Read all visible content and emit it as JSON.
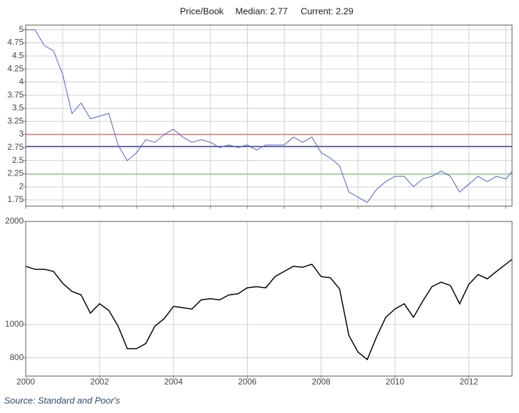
{
  "chart_data": [
    {
      "type": "line",
      "title": "Price/Book",
      "annotations": [
        "Median: 2.77",
        "Current: 2.29"
      ],
      "x": [
        2000,
        2000.25,
        2000.5,
        2000.75,
        2001,
        2001.25,
        2001.5,
        2001.75,
        2002,
        2002.25,
        2002.5,
        2002.75,
        2003,
        2003.25,
        2003.5,
        2003.75,
        2004,
        2004.25,
        2004.5,
        2004.75,
        2005,
        2005.25,
        2005.5,
        2005.75,
        2006,
        2006.25,
        2006.5,
        2006.75,
        2007,
        2007.25,
        2007.5,
        2007.75,
        2008,
        2008.25,
        2008.5,
        2008.75,
        2009,
        2009.25,
        2009.5,
        2009.75,
        2010,
        2010.25,
        2010.5,
        2010.75,
        2011,
        2011.25,
        2011.5,
        2011.75,
        2012,
        2012.25,
        2012.5,
        2012.75,
        2013,
        2013.17
      ],
      "values": [
        5.0,
        5.0,
        4.7,
        4.6,
        4.15,
        3.4,
        3.6,
        3.3,
        3.35,
        3.4,
        2.8,
        2.5,
        2.65,
        2.9,
        2.85,
        3.0,
        3.1,
        2.95,
        2.85,
        2.9,
        2.85,
        2.75,
        2.8,
        2.75,
        2.8,
        2.7,
        2.8,
        2.8,
        2.8,
        2.95,
        2.85,
        2.95,
        2.65,
        2.55,
        2.4,
        1.9,
        1.8,
        1.7,
        1.95,
        2.1,
        2.2,
        2.2,
        2.0,
        2.15,
        2.2,
        2.3,
        2.2,
        1.9,
        2.05,
        2.2,
        2.1,
        2.2,
        2.15,
        2.29
      ],
      "color": "#4a5fd6",
      "reference_lines": [
        {
          "value": 3,
          "color": "#e06060"
        },
        {
          "value": 2.77,
          "color": "#3c3c8c"
        },
        {
          "value": 2.24,
          "color": "#80d080"
        }
      ],
      "xlim": [
        2000,
        2013.17
      ],
      "xticks": [
        2000,
        2001,
        2002,
        2003,
        2004,
        2005,
        2006,
        2007,
        2008,
        2009,
        2010,
        2011,
        2012,
        2013
      ],
      "show_xtick_labels": false,
      "ylim": [
        1.63,
        5.09
      ],
      "yticks": [
        1.75,
        2,
        2.25,
        2.5,
        2.75,
        3,
        3.25,
        3.5,
        3.75,
        4,
        4.25,
        4.5,
        4.75,
        5
      ],
      "log_scale": false,
      "grid": true
    },
    {
      "type": "line",
      "x": [
        2000,
        2000.25,
        2000.5,
        2000.75,
        2001,
        2001.25,
        2001.5,
        2001.75,
        2002,
        2002.25,
        2002.5,
        2002.75,
        2003,
        2003.25,
        2003.5,
        2003.75,
        2004,
        2004.25,
        2004.5,
        2004.75,
        2005,
        2005.25,
        2005.5,
        2005.75,
        2006,
        2006.25,
        2006.5,
        2006.75,
        2007,
        2007.25,
        2007.5,
        2007.75,
        2008,
        2008.25,
        2008.5,
        2008.75,
        2009,
        2009.25,
        2009.5,
        2009.75,
        2010,
        2010.25,
        2010.5,
        2010.75,
        2011,
        2011.25,
        2011.5,
        2011.75,
        2012,
        2012.25,
        2012.5,
        2012.75,
        2013,
        2013.17
      ],
      "values": [
        1480,
        1450,
        1450,
        1430,
        1320,
        1250,
        1220,
        1080,
        1150,
        1100,
        990,
        850,
        850,
        880,
        990,
        1040,
        1130,
        1120,
        1110,
        1180,
        1190,
        1180,
        1220,
        1230,
        1280,
        1290,
        1280,
        1380,
        1430,
        1480,
        1470,
        1500,
        1380,
        1370,
        1270,
        930,
        830,
        790,
        920,
        1050,
        1110,
        1150,
        1050,
        1170,
        1290,
        1330,
        1300,
        1150,
        1310,
        1400,
        1360,
        1430,
        1500,
        1550
      ],
      "color": "#000000",
      "xlim": [
        2000,
        2013.17
      ],
      "xticks": [
        2000,
        2002,
        2004,
        2006,
        2008,
        2010,
        2012
      ],
      "show_xtick_labels": true,
      "ylim": [
        707,
        2000
      ],
      "yticks": [
        800,
        1000,
        2000
      ],
      "log_scale": true,
      "grid": true
    }
  ],
  "source": "Source: Standard and Poor's"
}
